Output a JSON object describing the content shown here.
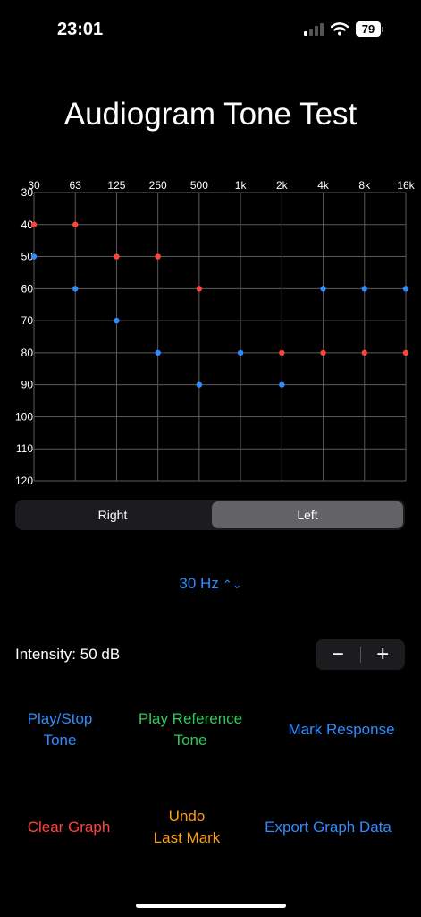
{
  "status": {
    "time": "23:01",
    "battery": "79"
  },
  "title": "Audiogram Tone Test",
  "chart_data": {
    "type": "scatter",
    "x_tick_labels": [
      "30",
      "63",
      "125",
      "250",
      "500",
      "1k",
      "2k",
      "4k",
      "8k",
      "16k"
    ],
    "y_tick_labels": [
      "30",
      "40",
      "50",
      "60",
      "70",
      "80",
      "90",
      "100",
      "110",
      "120"
    ],
    "ylim": [
      30,
      120
    ],
    "y_inverted": true,
    "grid": true,
    "series": [
      {
        "color": "#ff453a",
        "values": [
          40,
          40,
          50,
          50,
          60,
          null,
          80,
          80,
          80,
          80
        ]
      },
      {
        "color": "#2f8cff",
        "values": [
          50,
          60,
          70,
          80,
          90,
          80,
          90,
          60,
          60,
          60
        ]
      }
    ]
  },
  "segmented": {
    "right": "Right",
    "left": "Left",
    "selected": "Left"
  },
  "frequency_picker": {
    "value": "30 Hz"
  },
  "intensity": {
    "label": "Intensity: 50 dB"
  },
  "stepper": {
    "minus": "−",
    "plus": "+"
  },
  "buttons": {
    "play_stop_1": "Play/Stop",
    "play_stop_2": "Tone",
    "play_ref_1": "Play Reference",
    "play_ref_2": "Tone",
    "mark_response": "Mark Response",
    "clear_graph": "Clear Graph",
    "undo_1": "Undo",
    "undo_2": "Last Mark",
    "export": "Export Graph Data"
  },
  "colors": {
    "accent_blue": "#2f8cff",
    "green": "#34c759",
    "red": "#ff453a",
    "orange": "#ff9f0a"
  },
  "icons": {
    "signal": "cellular-signal-icon",
    "wifi": "wifi-icon",
    "battery": "battery-icon",
    "picker": "chevron-up-down-icon"
  }
}
